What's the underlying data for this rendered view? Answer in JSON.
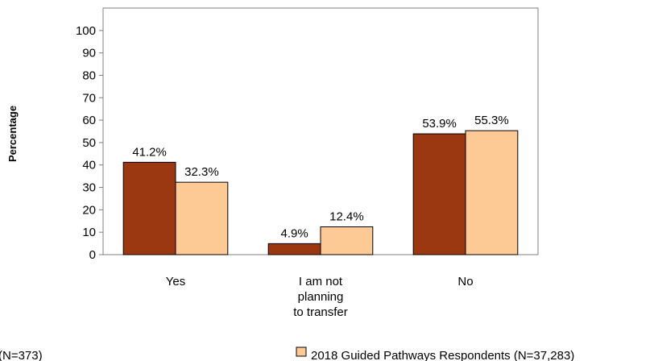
{
  "chart_data": {
    "type": "bar",
    "title": "",
    "xlabel": "",
    "ylabel": "Percentage",
    "ylim": [
      0,
      110
    ],
    "yticks": [
      0,
      10,
      20,
      30,
      40,
      50,
      60,
      70,
      80,
      90,
      100
    ],
    "categories": [
      [
        "Yes"
      ],
      [
        "I am not",
        "planning",
        "to transfer"
      ],
      [
        "No"
      ]
    ],
    "series": [
      {
        "name": "(N=373)",
        "color": "#9c3811",
        "values": [
          41.2,
          4.9,
          53.9
        ],
        "labels": [
          "41.2%",
          "4.9%",
          "53.9%"
        ]
      },
      {
        "name": "2018 Guided Pathways Respondents (N=37,283)",
        "color": "#fdca96",
        "values": [
          32.3,
          12.4,
          55.3
        ],
        "labels": [
          "32.3%",
          "12.4%",
          "55.3%"
        ]
      }
    ],
    "grid": false,
    "legend": "bottom"
  }
}
